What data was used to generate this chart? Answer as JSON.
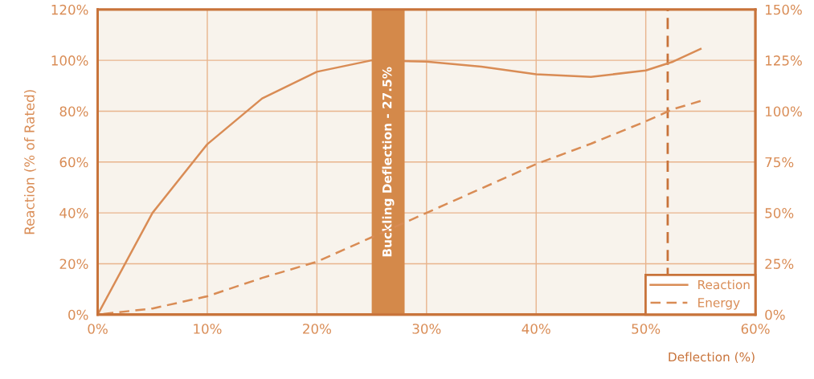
{
  "chart_data": {
    "type": "line",
    "xlabel": "Deflection (%)",
    "ylabel": "Reaction (% of Rated)",
    "xlim": [
      0,
      60
    ],
    "xticks": [
      {
        "value": 0,
        "label": "0%"
      },
      {
        "value": 10,
        "label": "10%"
      },
      {
        "value": 20,
        "label": "20%"
      },
      {
        "value": 30,
        "label": "30%"
      },
      {
        "value": 40,
        "label": "40%"
      },
      {
        "value": 50,
        "label": "50%"
      },
      {
        "value": 60,
        "label": "60%"
      }
    ],
    "ylim": [
      0,
      120
    ],
    "yticks": [
      {
        "value": 0,
        "label": "0%"
      },
      {
        "value": 20,
        "label": "20%"
      },
      {
        "value": 40,
        "label": "40%"
      },
      {
        "value": 60,
        "label": "60%"
      },
      {
        "value": 80,
        "label": "80%"
      },
      {
        "value": 100,
        "label": "100%"
      },
      {
        "value": 120,
        "label": "120%"
      }
    ],
    "y2lim": [
      0,
      150
    ],
    "y2ticks": [
      {
        "value": 0,
        "label": "0%"
      },
      {
        "value": 25,
        "label": "25%"
      },
      {
        "value": 50,
        "label": "50%"
      },
      {
        "value": 75,
        "label": "75%"
      },
      {
        "value": 100,
        "label": "100%"
      },
      {
        "value": 125,
        "label": "125%"
      },
      {
        "value": 150,
        "label": "150%"
      }
    ],
    "x": [
      0,
      5,
      10,
      15,
      20,
      25,
      30,
      35,
      40,
      45,
      50,
      52.5,
      55
    ],
    "series": [
      {
        "name": "Reaction",
        "color": "#d98c55",
        "line_style": "solid",
        "values": [
          0,
          40,
          67,
          85,
          95.5,
          100,
          99.5,
          97.5,
          94.5,
          93.5,
          96,
          99.5,
          104.5
        ]
      },
      {
        "name": "Energy",
        "color": "#d98c55",
        "line_style": "dashed",
        "axis": "y2",
        "values": [
          0,
          3,
          9,
          18,
          26,
          38,
          50,
          62,
          74,
          84,
          95,
          101,
          105
        ]
      }
    ],
    "bands": [
      {
        "axis": "x",
        "from": 25,
        "to": 28,
        "label": "Buckling Deflection - 27.5%",
        "color": "#d4894a"
      }
    ],
    "ref_lines": [
      {
        "axis": "x",
        "value": 52,
        "color": "#c8733a",
        "line_style": "dashed"
      }
    ],
    "grid": true,
    "legend": "bottom right"
  }
}
